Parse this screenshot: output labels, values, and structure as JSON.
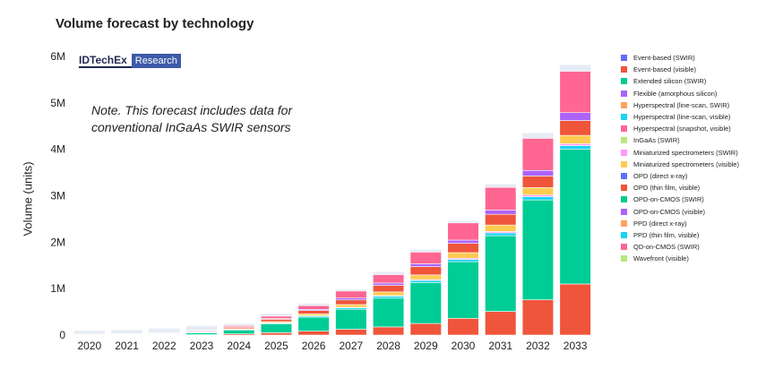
{
  "chart_data": {
    "type": "bar",
    "stacked": true,
    "title": "Volume forecast by technology",
    "ylabel": "Volume (units)",
    "xlabel": "",
    "ylim": [
      0,
      6000000
    ],
    "ytick_values": [
      0,
      1000000,
      2000000,
      3000000,
      4000000,
      5000000,
      6000000
    ],
    "ytick_labels": [
      "0",
      "1M",
      "2M",
      "3M",
      "4M",
      "5M",
      "6M"
    ],
    "grid": false,
    "legend_position": "right",
    "categories": [
      "2020",
      "2021",
      "2022",
      "2023",
      "2024",
      "2025",
      "2026",
      "2027",
      "2028",
      "2029",
      "2030",
      "2031",
      "2032",
      "2033"
    ],
    "series": [
      {
        "name": "Event-based (SWIR)",
        "color": "#636efa",
        "values": [
          0,
          0,
          0,
          0,
          0,
          0,
          0,
          0,
          0,
          0,
          0,
          0,
          0,
          0
        ]
      },
      {
        "name": "Event-based (visible)",
        "color": "#ef553b",
        "values": [
          2000,
          3000,
          4000,
          10000,
          25000,
          50000,
          85000,
          125000,
          175000,
          250000,
          360000,
          510000,
          760000,
          1100000
        ]
      },
      {
        "name": "Extended silicon (SWIR)",
        "color": "#00cc96",
        "values": [
          3000,
          6000,
          10000,
          40000,
          85000,
          190000,
          300000,
          430000,
          620000,
          880000,
          1220000,
          1630000,
          2150000,
          2900000
        ]
      },
      {
        "name": "Flexible (amorphous silicon)",
        "color": "#ab63fa",
        "values": [
          0,
          0,
          0,
          0,
          0,
          0,
          0,
          0,
          0,
          0,
          0,
          0,
          0,
          0
        ]
      },
      {
        "name": "Hyperspectral (line-scan, SWIR)",
        "color": "#ffa15a",
        "values": [
          0,
          0,
          0,
          0,
          0,
          0,
          0,
          0,
          0,
          0,
          0,
          0,
          0,
          0
        ]
      },
      {
        "name": "Hyperspectral (line-scan, visible)",
        "color": "#19d3f3",
        "values": [
          2000,
          3000,
          4000,
          6000,
          10000,
          20000,
          25000,
          30000,
          40000,
          45000,
          50000,
          60000,
          70000,
          80000
        ]
      },
      {
        "name": "Hyperspectral (snapshot, visible)",
        "color": "#ff6692",
        "values": [
          0,
          0,
          0,
          0,
          0,
          0,
          0,
          0,
          0,
          0,
          0,
          0,
          0,
          0
        ]
      },
      {
        "name": "InGaAs (SWIR)",
        "color": "#b6e880",
        "values": [
          0,
          0,
          0,
          0,
          0,
          0,
          0,
          0,
          0,
          0,
          0,
          0,
          0,
          0
        ]
      },
      {
        "name": "Miniaturized spectrometers (SWIR)",
        "color": "#ff97ff",
        "values": [
          1000,
          1000,
          1000,
          2000,
          3000,
          5000,
          8000,
          12000,
          15000,
          20000,
          25000,
          30000,
          35000,
          40000
        ]
      },
      {
        "name": "Miniaturized spectrometers (visible)",
        "color": "#fecb52",
        "values": [
          2000,
          3000,
          5000,
          8000,
          15000,
          25000,
          40000,
          60000,
          80000,
          100000,
          120000,
          140000,
          160000,
          180000
        ]
      },
      {
        "name": "OPD (direct x-ray)",
        "color": "#636efa",
        "values": [
          0,
          0,
          0,
          0,
          0,
          0,
          0,
          0,
          0,
          0,
          0,
          0,
          0,
          0
        ]
      },
      {
        "name": "OPD (thin film, visible)",
        "color": "#ef553b",
        "values": [
          5000,
          8000,
          10000,
          15000,
          30000,
          50000,
          70000,
          100000,
          140000,
          180000,
          200000,
          230000,
          250000,
          320000
        ]
      },
      {
        "name": "OPD-on-CMOS (SWIR)",
        "color": "#00cc96",
        "values": [
          0,
          0,
          0,
          0,
          0,
          0,
          0,
          0,
          0,
          0,
          0,
          0,
          0,
          0
        ]
      },
      {
        "name": "OPD-on-CMOS (visible)",
        "color": "#ab63fa",
        "values": [
          1000,
          2000,
          3000,
          5000,
          10000,
          15000,
          25000,
          40000,
          50000,
          60000,
          70000,
          90000,
          120000,
          170000
        ]
      },
      {
        "name": "PPD (direct x-ray)",
        "color": "#ffa15a",
        "values": [
          0,
          0,
          0,
          0,
          0,
          0,
          0,
          0,
          0,
          0,
          0,
          0,
          0,
          0
        ]
      },
      {
        "name": "PPD (thin film, visible)",
        "color": "#19d3f3",
        "values": [
          0,
          0,
          0,
          0,
          0,
          0,
          0,
          0,
          0,
          0,
          0,
          0,
          0,
          0
        ]
      },
      {
        "name": "QD-on-CMOS (SWIR)",
        "color": "#ff6692",
        "values": [
          3000,
          5000,
          8000,
          15000,
          25000,
          50000,
          80000,
          150000,
          180000,
          250000,
          370000,
          490000,
          690000,
          890000
        ]
      },
      {
        "name": "Wavefront (visible)",
        "color": "#b6e880",
        "values": [
          0,
          0,
          0,
          0,
          0,
          0,
          0,
          0,
          0,
          0,
          0,
          0,
          0,
          0
        ]
      }
    ],
    "background_bar": {
      "color": "#e6ebf5",
      "values": [
        90000,
        110000,
        140000,
        200000,
        240000,
        460000,
        680000,
        980000,
        1360000,
        1840000,
        2460000,
        3250000,
        4350000,
        5820000
      ]
    }
  },
  "logo": {
    "main": "IDTechEx",
    "sub": "Research"
  },
  "note": {
    "line1": "Note. This forecast includes data for",
    "line2": "conventional InGaAs SWIR sensors"
  }
}
